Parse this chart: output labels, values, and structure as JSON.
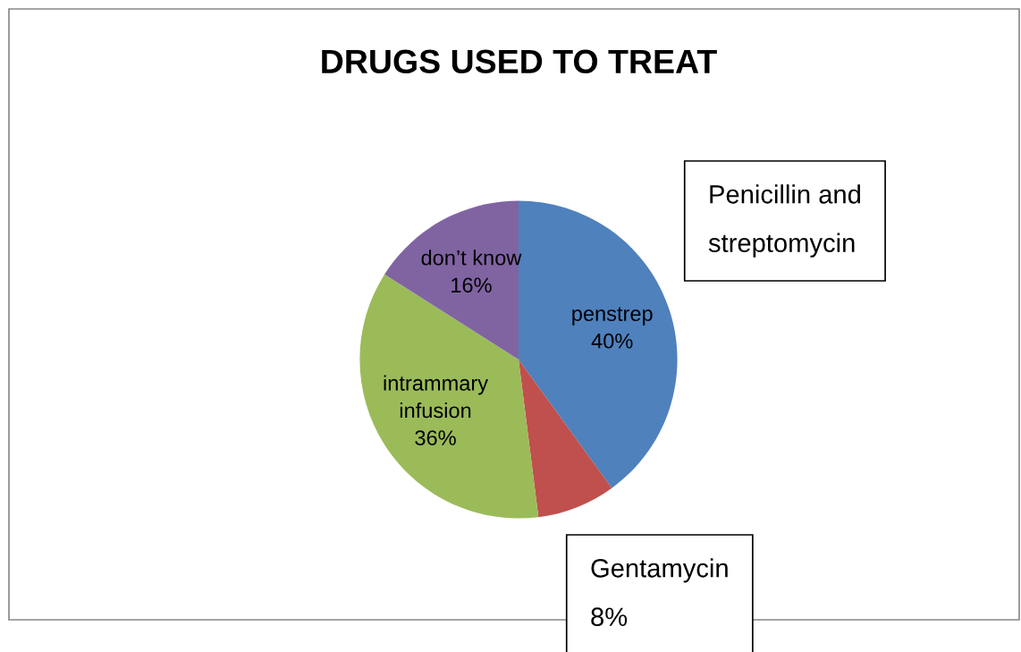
{
  "chart_data": {
    "type": "pie",
    "title": "DRUGS USED TO TREAT",
    "categories": [
      "penstrep",
      "Gentamycin",
      "intrammary infusion",
      "don’t know"
    ],
    "values": [
      40,
      8,
      36,
      16
    ],
    "value_labels": [
      "40%",
      "8%",
      "36%",
      "16%"
    ],
    "colors": [
      "#4f81bd",
      "#c0504d",
      "#9bbb59",
      "#8064a2"
    ],
    "annotations": [
      "Penicillin and streptomycin"
    ],
    "legend": false
  }
}
